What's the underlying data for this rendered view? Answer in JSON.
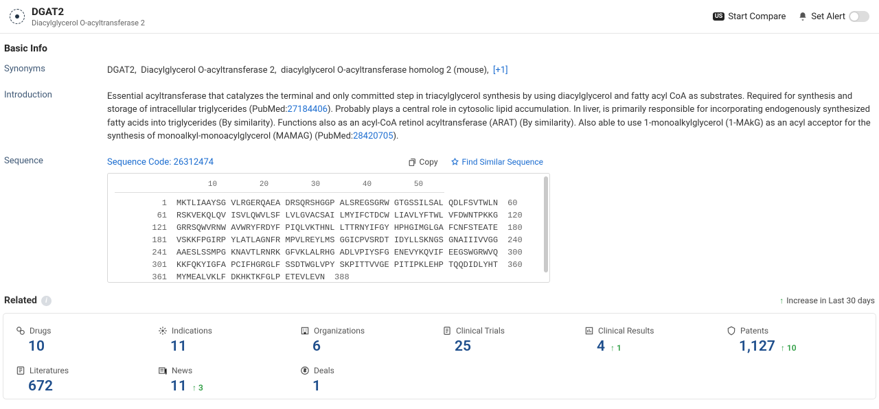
{
  "colors": {
    "link": "#1c6dd0",
    "cardNumber": "#1e4e8c",
    "delta": "#2f9e44",
    "border": "#e5e5e5"
  },
  "header": {
    "title": "DGAT2",
    "subtitle": "Diacylglycerol O-acyltransferase 2",
    "compare": "Start Compare",
    "alert": "Set Alert"
  },
  "basicInfo": {
    "title": "Basic Info",
    "synonymsLabel": "Synonyms",
    "synonymsText": "DGAT2,  Diacylglycerol O-acyltransferase 2,  diacylglycerol O-acyltransferase homolog 2 (mouse),  ",
    "synonymsMore": "[+1]",
    "introLabel": "Introduction",
    "introPart1": "Essential acyltransferase that catalyzes the terminal and only committed step in triacylglycerol synthesis by using diacylglycerol and fatty acyl CoA as substrates. Required for synthesis and storage of intracellular triglycerides (PubMed:",
    "introLink1": "27184406",
    "introPart2": "). Probably plays a central role in cytosolic lipid accumulation. In liver, is primarily responsible for incorporating endogenously synthesized fatty acids into triglycerides (By similarity). Functions also as an acyl-CoA retinol acyltransferase (ARAT) (By similarity). Also able to use 1-monoalkylglycerol (1-MAkG) as an acyl acceptor for the synthesis of monoalkyl-monoacylglycerol (MAMAG) (PubMed:",
    "introLink2": "28420705",
    "introPart3": ").",
    "sequenceLabel": "Sequence",
    "sequenceCode": "Sequence Code: 26312474",
    "copy": "Copy",
    "findSimilar": "Find Similar Sequence",
    "ruler": [
      "10",
      "20",
      "30",
      "40",
      "50"
    ],
    "rows": [
      {
        "start": "1",
        "seq": "MKTLIAAYSG VLRGERQAEA DRSQRSHGGP ALSREGSGRW GTGSSILSAL QDLFSVTWLN",
        "end": "60"
      },
      {
        "start": "61",
        "seq": "RSKVEKQLQV ISVLQWVLSF LVLGVACSAI LMYIFCTDCW LIAVLYFTWL VFDWNTPKKG",
        "end": "120"
      },
      {
        "start": "121",
        "seq": "GRRSQWVRNW AVWRYFRDYF PIQLVKTHNL LTTRNYIFGY HPHGIMGLGA FCNFSTEATE",
        "end": "180"
      },
      {
        "start": "181",
        "seq": "VSKKFPGIRP YLATLAGNFR MPVLREYLMS GGICPVSRDT IDYLLSKNGS GNAIIIVVGG",
        "end": "240"
      },
      {
        "start": "241",
        "seq": "AAESLSSMPG KNAVTLRNRK GFVKLALRHG ADLVPIYSFG ENEVYKQVIF EEGSWGRWVQ",
        "end": "300"
      },
      {
        "start": "301",
        "seq": "KKFQKYIGFA PCIFHGRGLF SSDTWGLVPY SKPITTVVGE PITIPKLEHP TQQDIDLYHT",
        "end": "360"
      },
      {
        "start": "361",
        "seq": "MYMEALVKLF DKHKTKFGLP ETEVLEVN",
        "end": "388"
      }
    ]
  },
  "related": {
    "title": "Related",
    "increase": "Increase in Last 30 days",
    "cards": [
      {
        "icon": "drug",
        "label": "Drugs",
        "value": "10",
        "delta": ""
      },
      {
        "icon": "indication",
        "label": "Indications",
        "value": "11",
        "delta": ""
      },
      {
        "icon": "org",
        "label": "Organizations",
        "value": "6",
        "delta": ""
      },
      {
        "icon": "trial",
        "label": "Clinical Trials",
        "value": "25",
        "delta": ""
      },
      {
        "icon": "result",
        "label": "Clinical Results",
        "value": "4",
        "delta": "1"
      },
      {
        "icon": "patent",
        "label": "Patents",
        "value": "1,127",
        "delta": "10"
      },
      {
        "icon": "lit",
        "label": "Literatures",
        "value": "672",
        "delta": ""
      },
      {
        "icon": "news",
        "label": "News",
        "value": "11",
        "delta": "3"
      },
      {
        "icon": "deal",
        "label": "Deals",
        "value": "1",
        "delta": ""
      }
    ]
  }
}
